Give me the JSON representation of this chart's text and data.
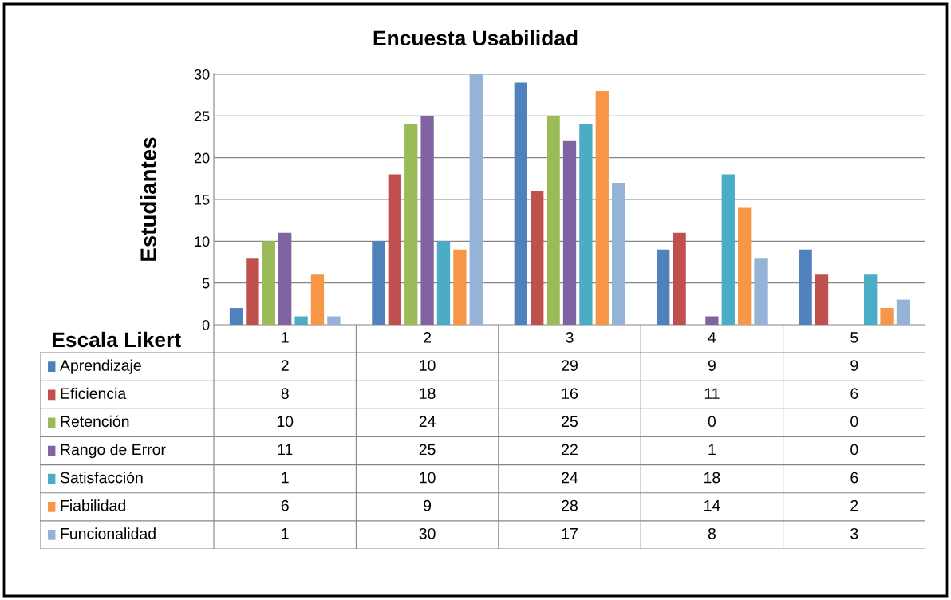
{
  "chart_data": {
    "type": "bar",
    "title": "Encuesta Usabilidad",
    "xlabel": "Escala Likert",
    "ylabel": "Estudiantes",
    "categories": [
      "1",
      "2",
      "3",
      "4",
      "5"
    ],
    "series": [
      {
        "name": "Aprendizaje",
        "color": "#4f81bd",
        "values": [
          2,
          10,
          29,
          9,
          9
        ]
      },
      {
        "name": "Eficiencia",
        "color": "#c0504d",
        "values": [
          8,
          18,
          16,
          11,
          6
        ]
      },
      {
        "name": "Retención",
        "color": "#9bbb59",
        "values": [
          10,
          24,
          25,
          0,
          0
        ]
      },
      {
        "name": "Rango de Error",
        "color": "#8064a2",
        "values": [
          11,
          25,
          22,
          1,
          0
        ]
      },
      {
        "name": "Satisfacción",
        "color": "#4bacc6",
        "values": [
          1,
          10,
          24,
          18,
          6
        ]
      },
      {
        "name": "Fiabilidad",
        "color": "#f79646",
        "values": [
          6,
          9,
          28,
          14,
          2
        ]
      },
      {
        "name": "Funcionalidad",
        "color": "#95b3d7",
        "values": [
          1,
          30,
          17,
          8,
          3
        ]
      }
    ],
    "ylim": [
      0,
      30
    ],
    "yticks": [
      0,
      5,
      10,
      15,
      20,
      25,
      30
    ],
    "grid": "y",
    "tick_labels": "y",
    "data_labels": true,
    "legend": "bottom left"
  }
}
